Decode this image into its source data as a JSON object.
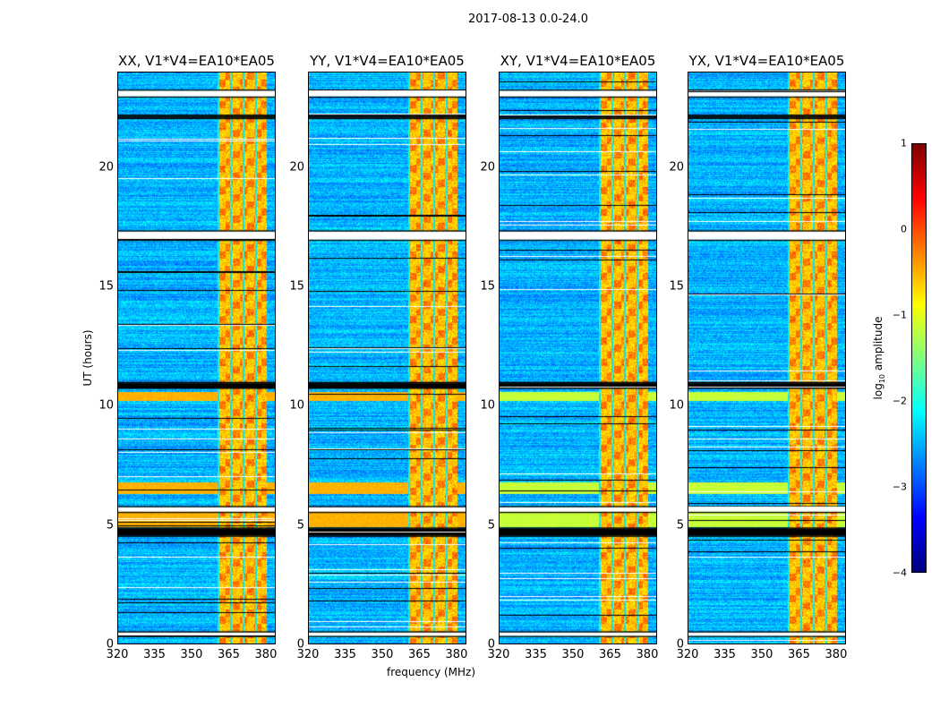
{
  "chart_data": {
    "type": "heatmap",
    "title": "2017-08-13 0.0-24.0",
    "xlabel": "frequency (MHz)",
    "ylabel": "UT (hours)",
    "xlim": [
      320,
      384
    ],
    "ylim": [
      0,
      24
    ],
    "xticks": [
      "320",
      "335",
      "350",
      "365",
      "380"
    ],
    "xtick_values": [
      320,
      335,
      350,
      365,
      380
    ],
    "yticks": [
      "0",
      "5",
      "10",
      "15",
      "20"
    ],
    "ytick_values": [
      0,
      5,
      10,
      15,
      20
    ],
    "panels": [
      {
        "title": "XX, V1*V4=EA10*EA05"
      },
      {
        "title": "YY, V1*V4=EA10*EA05"
      },
      {
        "title": "XY, V1*V4=EA10*EA05"
      },
      {
        "title": "YX, V1*V4=EA10*EA05"
      }
    ],
    "bright_band_MHz": [
      360,
      380
    ],
    "flagged_gaps_hours": [
      [
        23.0,
        23.25
      ],
      [
        22.1,
        22.2
      ],
      [
        17.0,
        17.35
      ],
      [
        10.8,
        11.0
      ],
      [
        5.6,
        5.8
      ],
      [
        4.6,
        4.9
      ],
      [
        0.4,
        0.55
      ]
    ],
    "strong_rows_hours": [
      [
        4.9,
        5.6
      ],
      [
        10.2,
        10.6
      ],
      [
        6.3,
        6.8
      ]
    ],
    "colorbar": {
      "label": "log10 amplitude",
      "label_main": "log",
      "label_sub": "10",
      "label_rest": " amplitude",
      "range": [
        -4,
        1
      ],
      "ticks": [
        "1",
        "0",
        "−1",
        "−2",
        "−3",
        "−4"
      ],
      "tick_values": [
        1,
        0,
        -1,
        -2,
        -3,
        -4
      ],
      "colormap": "jet"
    }
  }
}
